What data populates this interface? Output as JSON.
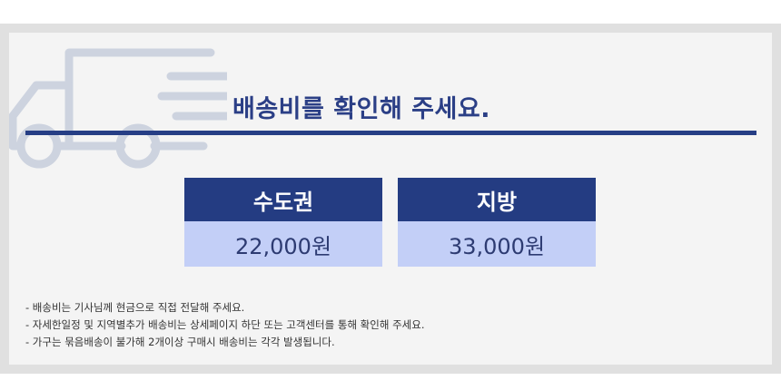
{
  "title": "배송비를 확인해 주세요.",
  "rates": [
    {
      "region": "수도권",
      "price": "22,000원"
    },
    {
      "region": "지방",
      "price": "33,000원"
    }
  ],
  "notes": [
    "-  배송비는 기사님께 현금으로 직접 전달해 주세요.",
    "-  자세한일정 및 지역별추가 배송비는 상세페이지 하단 또는 고객센터를 통해 확인해 주세요.",
    " - 가구는 묶음배송이 불가해 2개이상 구매시 배송비는 각각 발생됩니다."
  ],
  "colors": {
    "accent": "#243c82",
    "price_bg": "#c3cff7",
    "panel": "#f4f4f4",
    "frame": "#e0e0e0",
    "truck": "#cdd3df"
  },
  "icons": {
    "truck": "delivery-truck-icon"
  }
}
